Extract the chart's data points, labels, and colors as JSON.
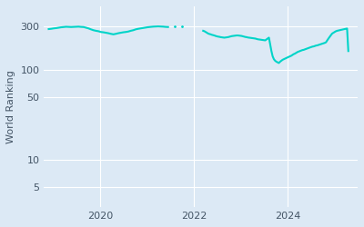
{
  "ylabel": "World Ranking",
  "line_color": "#00d4c8",
  "background_color": "#dce9f5",
  "fig_background": "#dce9f5",
  "yticks": [
    5,
    10,
    50,
    100,
    300
  ],
  "ytick_labels": [
    "5",
    "10",
    "50",
    "100",
    "300"
  ],
  "xlim_start": 2018.8,
  "xlim_end": 2025.5,
  "ylim_bottom": 3,
  "ylim_top": 500,
  "segment1": {
    "x_start_year": 2018.9,
    "x_end_year": 2021.45,
    "y_values": [
      280,
      282,
      285,
      287,
      290,
      293,
      295,
      297,
      296,
      295,
      296,
      297,
      298,
      296,
      295,
      290,
      285,
      278,
      272,
      268,
      265,
      260,
      258,
      255,
      252,
      248,
      245,
      248,
      252,
      255,
      258,
      260,
      263,
      268,
      272,
      278,
      282,
      285,
      288,
      291,
      294,
      296,
      298,
      299,
      300,
      299,
      298,
      296,
      295
    ]
  },
  "segment2_dots": {
    "x_values": [
      2021.6,
      2021.75
    ],
    "y_values": [
      298,
      300
    ]
  },
  "segment3": {
    "x_start_year": 2022.2,
    "x_end_year": 2025.3,
    "y_values": [
      268,
      265,
      260,
      255,
      250,
      247,
      245,
      242,
      240,
      238,
      235,
      233,
      231,
      230,
      228,
      227,
      226,
      225,
      226,
      227,
      228,
      230,
      232,
      234,
      235,
      236,
      237,
      238,
      238,
      237,
      236,
      235,
      233,
      231,
      229,
      228,
      226,
      225,
      224,
      223,
      222,
      221,
      220,
      218,
      216,
      215,
      214,
      213,
      212,
      211,
      210,
      215,
      220,
      225,
      190,
      160,
      140,
      130,
      125,
      122,
      120,
      118,
      122,
      125,
      128,
      130,
      132,
      134,
      136,
      138,
      140,
      142,
      145,
      148,
      150,
      153,
      156,
      158,
      160,
      162,
      164,
      165,
      167,
      169,
      171,
      173,
      175,
      177,
      179,
      180,
      182,
      184,
      185,
      187,
      189,
      191,
      193,
      195,
      197,
      200,
      210,
      220,
      230,
      240,
      250,
      255,
      260,
      265,
      268,
      270,
      272,
      274,
      276,
      278,
      280,
      282,
      284,
      160
    ]
  },
  "grid_color": "#ffffff",
  "line_width": 1.5,
  "tick_color": "#8899aa",
  "label_color": "#445566"
}
